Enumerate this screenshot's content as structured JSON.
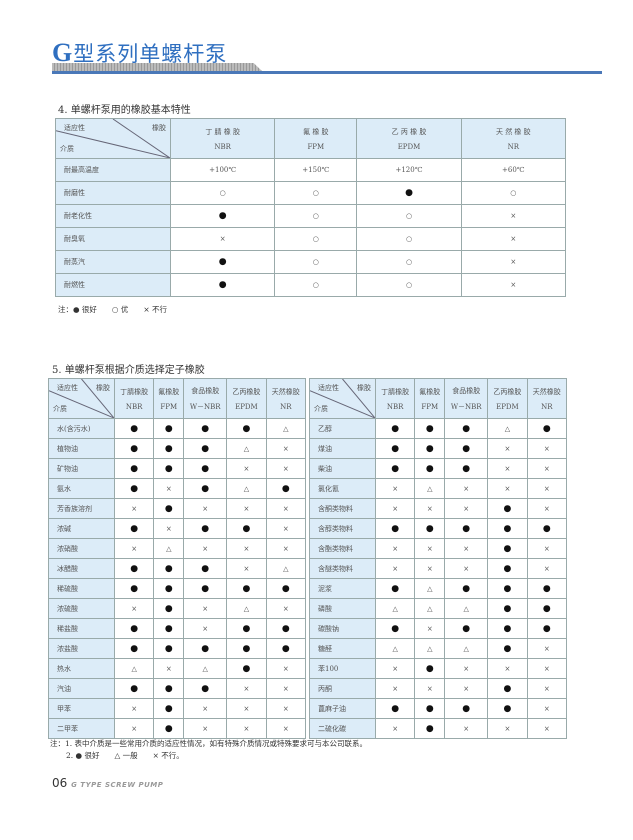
{
  "header": {
    "prefix": "G",
    "title": "型系列单螺杆泵"
  },
  "section4": {
    "title": "4. 单螺杆泵用的橡胶基本特性",
    "corner_top": "适应性",
    "corner_right": "橡胶",
    "corner_bottom": "介质",
    "columns": [
      {
        "cn": "丁 腈 橡 胶",
        "en": "NBR"
      },
      {
        "cn": "氟 橡 胶",
        "en": "FPM"
      },
      {
        "cn": "乙 丙 橡 胶",
        "en": "EPDM"
      },
      {
        "cn": "天 然 橡 胶",
        "en": "NR"
      }
    ],
    "rows": [
      {
        "label": "耐最高温度",
        "values": [
          "+100℃",
          "+150℃",
          "+120℃",
          "+60℃"
        ]
      },
      {
        "label": "耐磨性",
        "values": [
          "○",
          "○",
          "●",
          "○"
        ]
      },
      {
        "label": "耐老化性",
        "values": [
          "●",
          "○",
          "○",
          "×"
        ]
      },
      {
        "label": "耐臭氧",
        "values": [
          "×",
          "○",
          "○",
          "×"
        ]
      },
      {
        "label": "耐蒸汽",
        "values": [
          "●",
          "○",
          "○",
          "×"
        ]
      },
      {
        "label": "耐燃性",
        "values": [
          "●",
          "○",
          "○",
          "×"
        ]
      }
    ],
    "note": "注：● 很好　　○ 优　　× 不行"
  },
  "section5": {
    "title": "5. 单螺杆泵根据介质选择定子橡胶",
    "corner_top": "适应性",
    "corner_right": "橡胶",
    "corner_bottom": "介质",
    "columns": [
      {
        "cn": "丁腈橡胶",
        "en": "NBR"
      },
      {
        "cn": "氟橡胶",
        "en": "FPM"
      },
      {
        "cn": "食品橡胶",
        "en": "W－NBR"
      },
      {
        "cn": "乙丙橡胶",
        "en": "EPDM"
      },
      {
        "cn": "天然橡胶",
        "en": "NR"
      }
    ],
    "left_rows": [
      {
        "label": "水(含污水)",
        "values": [
          "●",
          "●",
          "●",
          "●",
          "△"
        ]
      },
      {
        "label": "植物油",
        "values": [
          "●",
          "●",
          "●",
          "△",
          "×"
        ]
      },
      {
        "label": "矿物油",
        "values": [
          "●",
          "●",
          "●",
          "×",
          "×"
        ]
      },
      {
        "label": "氨水",
        "values": [
          "●",
          "×",
          "●",
          "△",
          "●"
        ]
      },
      {
        "label": "芳香族溶剂",
        "values": [
          "×",
          "●",
          "×",
          "×",
          "×"
        ]
      },
      {
        "label": "浓碱",
        "values": [
          "●",
          "×",
          "●",
          "●",
          "×"
        ]
      },
      {
        "label": "浓硝酸",
        "values": [
          "×",
          "△",
          "×",
          "×",
          "×"
        ]
      },
      {
        "label": "冰醋酸",
        "values": [
          "●",
          "●",
          "●",
          "×",
          "△"
        ]
      },
      {
        "label": "稀硫酸",
        "values": [
          "●",
          "●",
          "●",
          "●",
          "●"
        ]
      },
      {
        "label": "浓硫酸",
        "values": [
          "×",
          "●",
          "×",
          "△",
          "×"
        ]
      },
      {
        "label": "稀盐酸",
        "values": [
          "●",
          "●",
          "×",
          "●",
          "●"
        ]
      },
      {
        "label": "浓盐酸",
        "values": [
          "●",
          "●",
          "●",
          "●",
          "●"
        ]
      },
      {
        "label": "热水",
        "values": [
          "△",
          "×",
          "△",
          "●",
          "×"
        ]
      },
      {
        "label": "汽油",
        "values": [
          "●",
          "●",
          "●",
          "×",
          "×"
        ]
      },
      {
        "label": "甲苯",
        "values": [
          "×",
          "●",
          "×",
          "×",
          "×"
        ]
      },
      {
        "label": "二甲苯",
        "values": [
          "×",
          "●",
          "×",
          "×",
          "×"
        ]
      }
    ],
    "right_rows": [
      {
        "label": "乙醇",
        "values": [
          "●",
          "●",
          "●",
          "△",
          "●"
        ]
      },
      {
        "label": "煤油",
        "values": [
          "●",
          "●",
          "●",
          "×",
          "×"
        ]
      },
      {
        "label": "柴油",
        "values": [
          "●",
          "●",
          "●",
          "×",
          "×"
        ]
      },
      {
        "label": "氯化氰",
        "values": [
          "×",
          "△",
          "×",
          "×",
          "×"
        ]
      },
      {
        "label": "含酮类物料",
        "values": [
          "×",
          "×",
          "×",
          "●",
          "×"
        ]
      },
      {
        "label": "含醇类物料",
        "values": [
          "●",
          "●",
          "●",
          "●",
          "●"
        ]
      },
      {
        "label": "含酯类物料",
        "values": [
          "×",
          "×",
          "×",
          "●",
          "×"
        ]
      },
      {
        "label": "含醚类物料",
        "values": [
          "×",
          "×",
          "×",
          "●",
          "×"
        ]
      },
      {
        "label": "泥浆",
        "values": [
          "●",
          "△",
          "●",
          "●",
          "●"
        ]
      },
      {
        "label": "磷酸",
        "values": [
          "△",
          "△",
          "△",
          "●",
          "●"
        ]
      },
      {
        "label": "碳酸钠",
        "values": [
          "●",
          "×",
          "●",
          "●",
          "●"
        ]
      },
      {
        "label": "糖醛",
        "values": [
          "△",
          "△",
          "△",
          "●",
          "×"
        ]
      },
      {
        "label": "苯100",
        "values": [
          "×",
          "●",
          "×",
          "×",
          "×"
        ]
      },
      {
        "label": "丙酮",
        "values": [
          "×",
          "×",
          "×",
          "●",
          "×"
        ]
      },
      {
        "label": "蓖麻子油",
        "values": [
          "●",
          "●",
          "●",
          "●",
          "×"
        ]
      },
      {
        "label": "二硫化碳",
        "values": [
          "×",
          "●",
          "×",
          "×",
          "×"
        ]
      }
    ],
    "note1": "注：1. 表中介质是一些常用介质的适应性情况，如有特殊介质情况或特殊要求可与本公司联系。",
    "note2": "2. ● 很好　　△ 一般　　× 不行。"
  },
  "footer": {
    "page": "06",
    "text": "G TYPE SCREW PUMP"
  }
}
